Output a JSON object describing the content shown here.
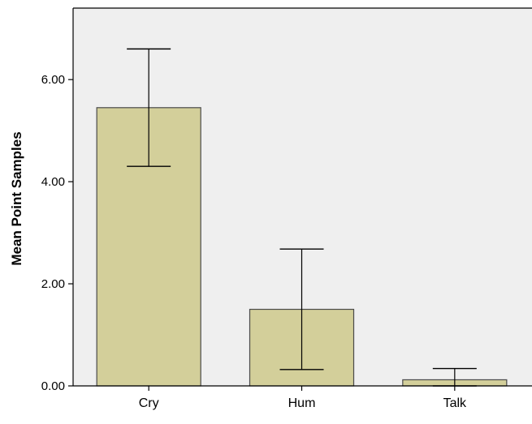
{
  "chart_data": {
    "type": "bar",
    "title": "",
    "xlabel": "",
    "ylabel": "Mean Point Samples",
    "categories": [
      "Cry",
      "Hum",
      "Talk"
    ],
    "values": [
      5.45,
      1.5,
      0.12
    ],
    "error_bars": [
      {
        "low": 4.3,
        "high": 6.6
      },
      {
        "low": 0.32,
        "high": 2.68
      },
      {
        "low": 0.0,
        "high": 0.34
      }
    ],
    "ylim": [
      0,
      7.4
    ],
    "yticks": [
      0,
      2,
      4,
      6
    ],
    "ytick_labels": [
      "0.00",
      "2.00",
      "4.00",
      "6.00"
    ],
    "grid": false,
    "legend": "none",
    "colors": {
      "bar_fill": "#d3cf9a",
      "bar_stroke": "#4a4a4a",
      "plot_background": "#efefef",
      "error_bar": "#000000"
    }
  }
}
